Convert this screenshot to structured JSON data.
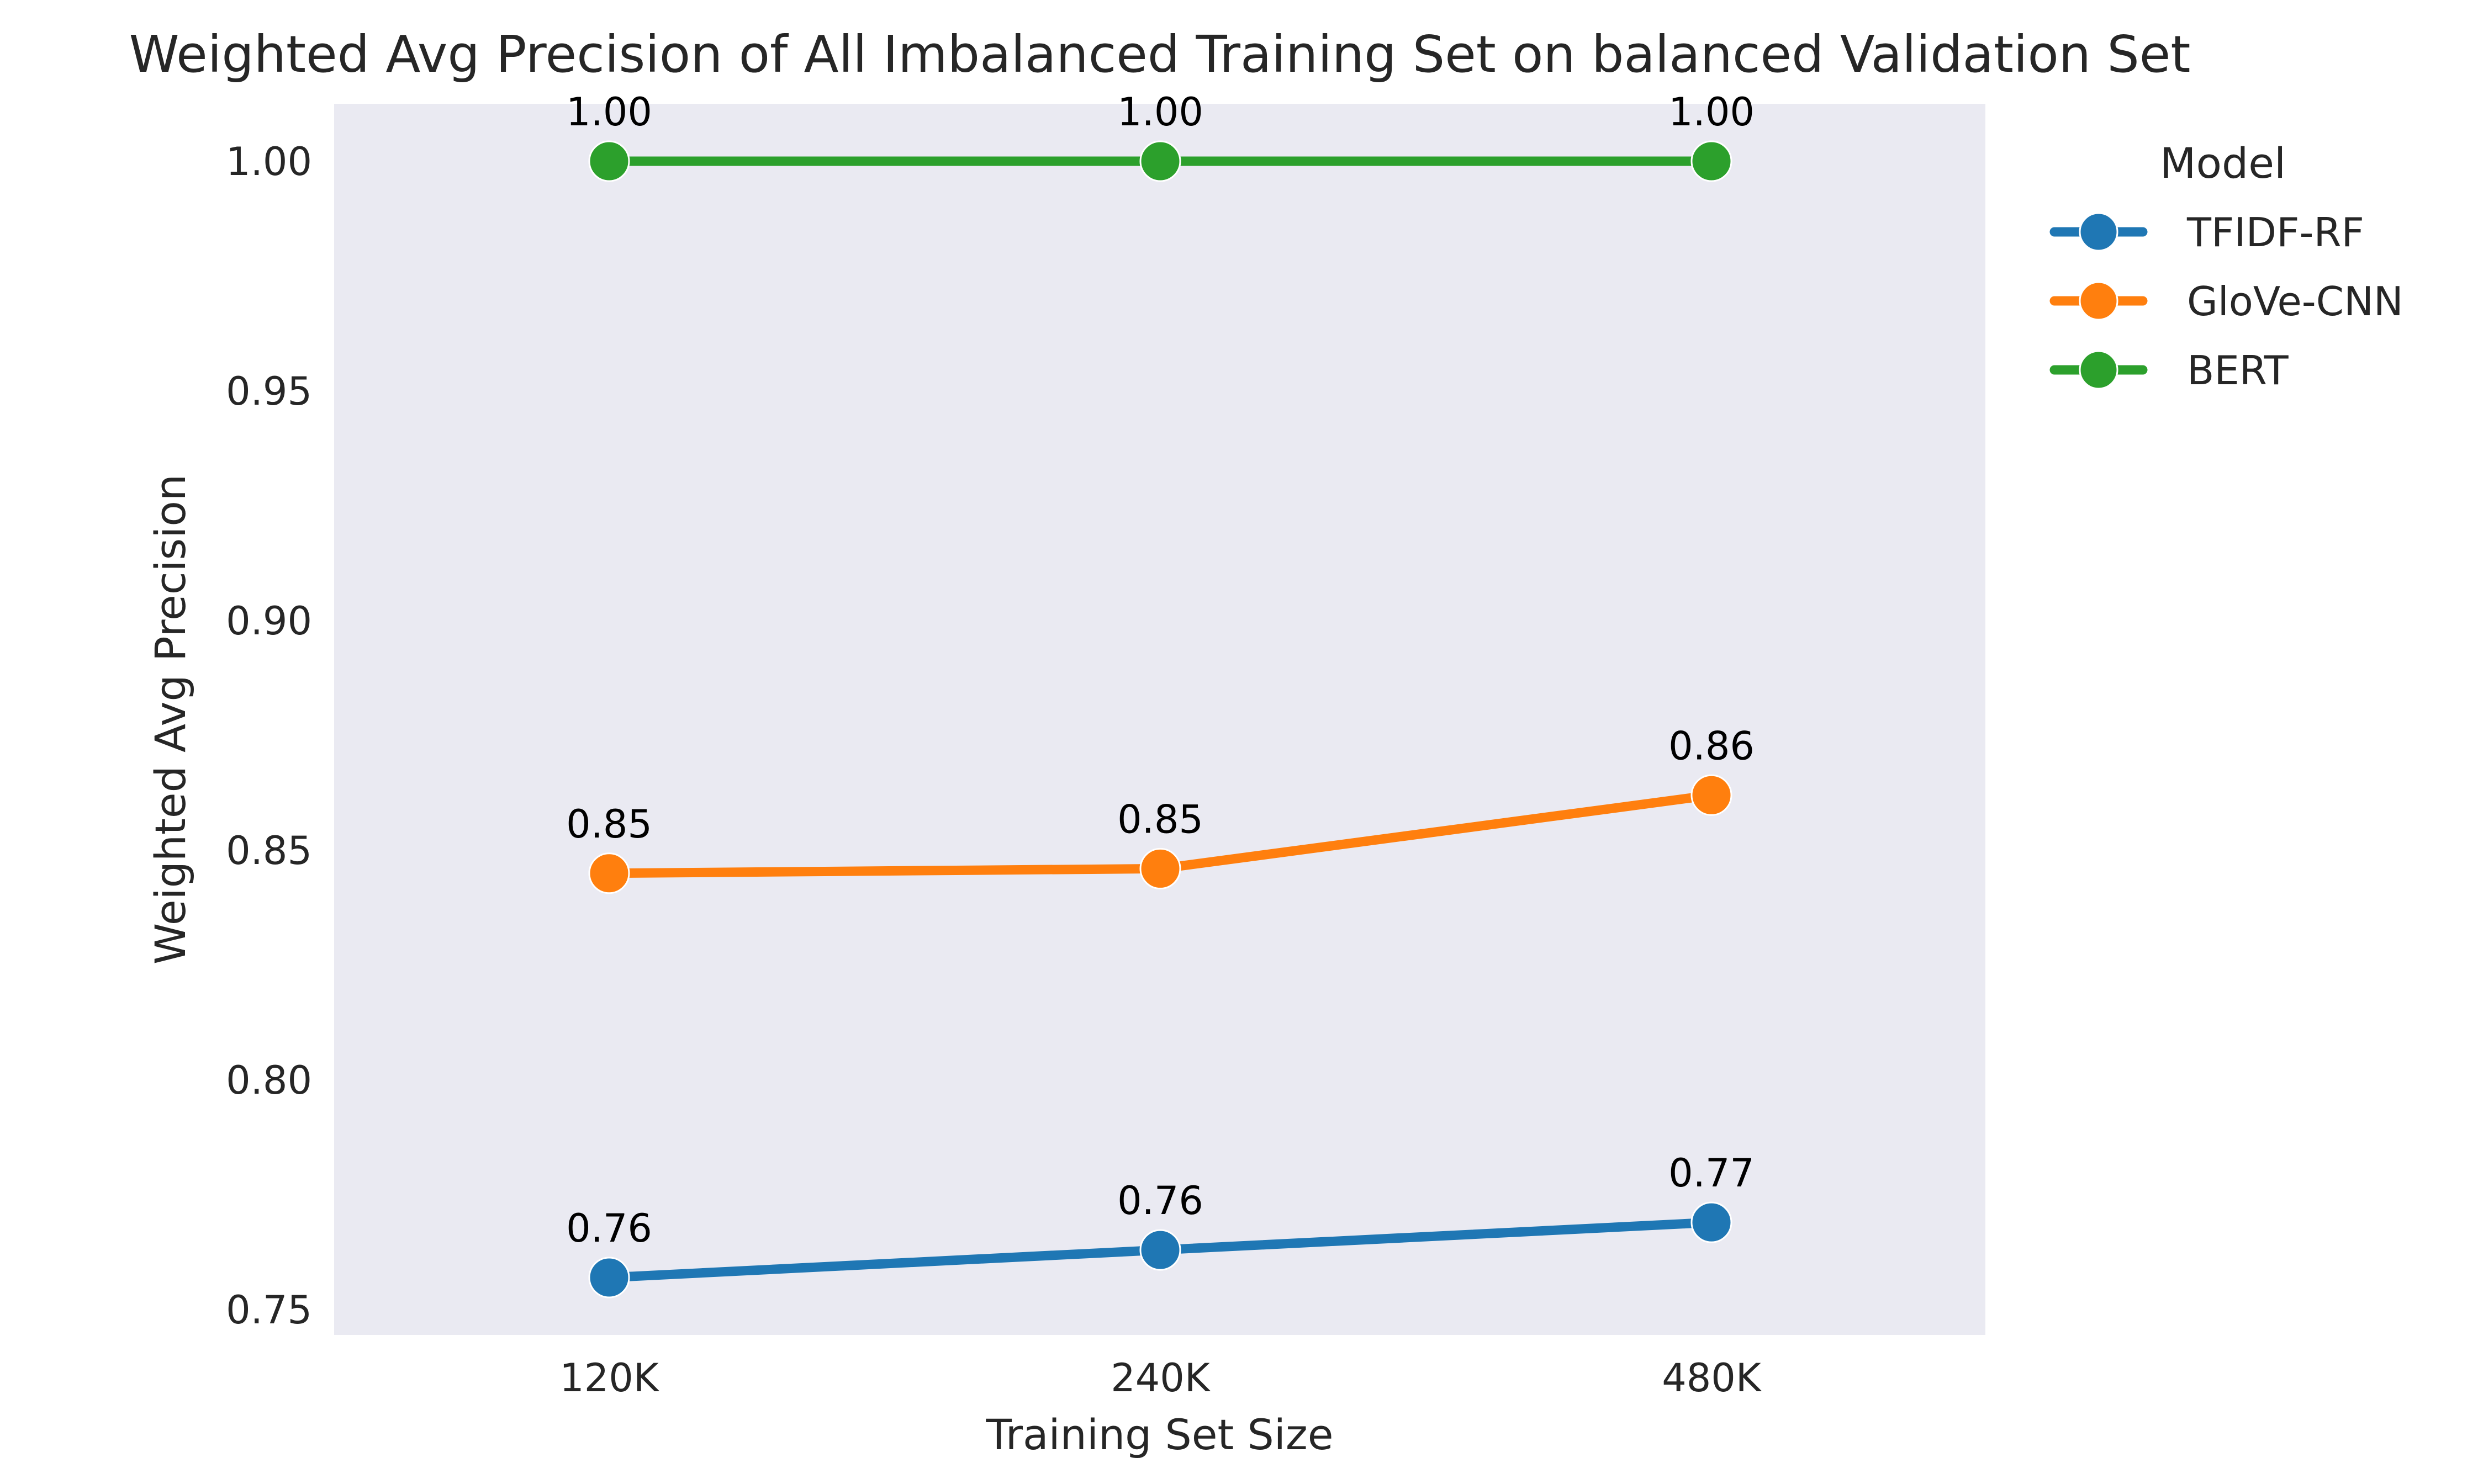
{
  "chart_data": {
    "type": "line",
    "title": "Weighted Avg Precision of All Imbalanced Training Set on balanced Validation Set",
    "xlabel": "Training Set Size",
    "ylabel": "Weighted Avg Precision",
    "categories": [
      "120K",
      "240K",
      "480K"
    ],
    "ylim": [
      0.7445,
      1.0125
    ],
    "yticks": [
      0.75,
      0.8,
      0.85,
      0.9,
      0.95,
      1.0
    ],
    "ytick_labels": [
      "0.75",
      "0.80",
      "0.85",
      "0.90",
      "0.95",
      "1.00"
    ],
    "grid": false,
    "background_color": "#eaeaf2",
    "legend": {
      "title": "Model",
      "placement": "outside-right-top"
    },
    "series": [
      {
        "name": "TFIDF-RF",
        "color": "#1f77b4",
        "values": [
          0.757,
          0.763,
          0.769
        ],
        "labels": [
          "0.76",
          "0.76",
          "0.77"
        ]
      },
      {
        "name": "GloVe-CNN",
        "color": "#ff7f0e",
        "values": [
          0.845,
          0.846,
          0.862
        ],
        "labels": [
          "0.85",
          "0.85",
          "0.86"
        ]
      },
      {
        "name": "BERT",
        "color": "#2ca02c",
        "values": [
          1.0,
          1.0,
          1.0
        ],
        "labels": [
          "1.00",
          "1.00",
          "1.00"
        ]
      }
    ]
  }
}
